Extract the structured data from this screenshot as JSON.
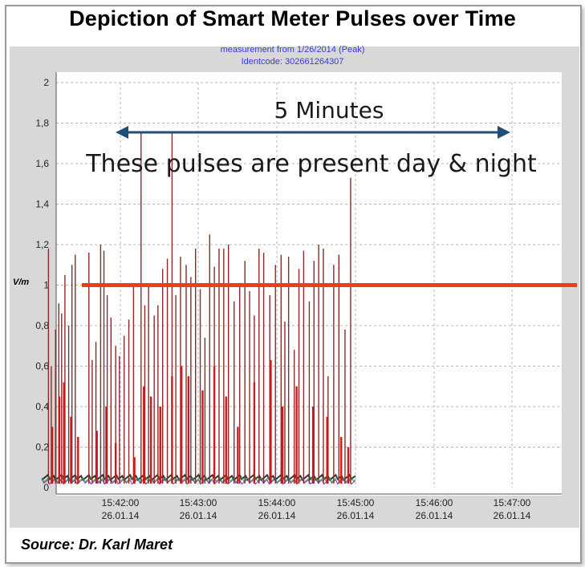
{
  "chart_data": {
    "type": "line",
    "title": "Depiction of Smart Meter Pulses over Time",
    "subtitle_lines": [
      "measurement from 1/26/2014 (Peak)",
      "Identcode: 302661264307"
    ],
    "ylabel": "V/m",
    "ylim": [
      0,
      2
    ],
    "y_ticks": [
      "0",
      "0,2",
      "0,4",
      "0,6",
      "0,8",
      "1",
      "1,2",
      "1,4",
      "1,6",
      "1,8",
      "2"
    ],
    "x_ticks": [
      {
        "time": "15:42:00",
        "date": "26.01.14"
      },
      {
        "time": "15:43:00",
        "date": "26.01.14"
      },
      {
        "time": "15:44:00",
        "date": "26.01.14"
      },
      {
        "time": "15:45:00",
        "date": "26.01.14"
      },
      {
        "time": "15:46:00",
        "date": "26.01.14"
      },
      {
        "time": "15:47:00",
        "date": "26.01.14"
      }
    ],
    "grid": true,
    "reference_line": {
      "value": 1,
      "color": "#e8401a"
    },
    "annotations": {
      "span_label": "5 Minutes",
      "note": "These pulses are present day & night"
    },
    "series": [
      {
        "color": "#8b2a2a",
        "pulses": [
          [
            15.6847,
            1.18
          ],
          [
            15.6853,
            0.6
          ],
          [
            15.6862,
            0.78
          ],
          [
            15.6869,
            0.91
          ],
          [
            15.6875,
            0.86
          ],
          [
            15.6882,
            1.05
          ],
          [
            15.689,
            0.8
          ],
          [
            15.6897,
            1.1
          ],
          [
            15.6904,
            1.15
          ],
          [
            15.6933,
            1.16
          ],
          [
            15.694,
            0.63
          ],
          [
            15.6948,
            0.72
          ],
          [
            15.6958,
            1.2
          ],
          [
            15.6965,
            1.17
          ],
          [
            15.6972,
            0.95
          ],
          [
            15.698,
            0.84
          ],
          [
            15.699,
            0.7
          ],
          [
            15.6998,
            0.65
          ],
          [
            15.7008,
            0.75
          ],
          [
            15.7018,
            0.83
          ],
          [
            15.7028,
            0.99
          ],
          [
            15.7044,
            1.76
          ],
          [
            15.7052,
            0.9
          ],
          [
            15.706,
            1.0
          ],
          [
            15.7072,
            0.85
          ],
          [
            15.708,
            0.9
          ],
          [
            15.709,
            1.08
          ],
          [
            15.71,
            1.13
          ],
          [
            15.711,
            1.75
          ],
          [
            15.7118,
            0.95
          ],
          [
            15.7128,
            1.14
          ],
          [
            15.714,
            1.1
          ],
          [
            15.715,
            1.04
          ],
          [
            15.716,
            1.18
          ],
          [
            15.717,
            0.98
          ],
          [
            15.718,
            0.74
          ],
          [
            15.719,
            1.25
          ],
          [
            15.72,
            1.09
          ],
          [
            15.721,
            1.18
          ],
          [
            15.722,
            1.18
          ],
          [
            15.723,
            1.2
          ],
          [
            15.7242,
            0.92
          ],
          [
            15.7254,
            1.0
          ],
          [
            15.7265,
            1.12
          ],
          [
            15.7275,
            0.97
          ],
          [
            15.7285,
            0.85
          ],
          [
            15.7295,
            1.18
          ],
          [
            15.7305,
            1.16
          ],
          [
            15.7318,
            0.95
          ],
          [
            15.733,
            1.1
          ],
          [
            15.7342,
            1.15
          ],
          [
            15.735,
            0.82
          ],
          [
            15.7358,
            1.14
          ],
          [
            15.737,
            0.68
          ],
          [
            15.738,
            1.08
          ],
          [
            15.739,
            1.17
          ],
          [
            15.7402,
            0.92
          ],
          [
            15.7412,
            1.12
          ],
          [
            15.7422,
            1.2
          ],
          [
            15.7432,
            1.18
          ],
          [
            15.7442,
            0.55
          ],
          [
            15.7454,
            1.1
          ],
          [
            15.7465,
            1.15
          ],
          [
            15.7478,
            0.78
          ],
          [
            15.749,
            1.53
          ]
        ]
      },
      {
        "color": "#d01818",
        "pulses": [
          [
            15.6855,
            0.3
          ],
          [
            15.687,
            0.45
          ],
          [
            15.688,
            0.52
          ],
          [
            15.6895,
            0.35
          ],
          [
            15.691,
            0.25
          ],
          [
            15.695,
            0.28
          ],
          [
            15.697,
            0.4
          ],
          [
            15.699,
            0.22
          ],
          [
            15.703,
            0.15
          ],
          [
            15.705,
            0.5
          ],
          [
            15.7065,
            0.45
          ],
          [
            15.7085,
            0.4
          ],
          [
            15.711,
            0.55
          ],
          [
            15.713,
            0.6
          ],
          [
            15.7145,
            0.55
          ],
          [
            15.7175,
            0.48
          ],
          [
            15.72,
            0.6
          ],
          [
            15.7225,
            0.45
          ],
          [
            15.725,
            0.3
          ],
          [
            15.7285,
            0.52
          ],
          [
            15.732,
            0.63
          ],
          [
            15.7345,
            0.4
          ],
          [
            15.7375,
            0.5
          ],
          [
            15.741,
            0.4
          ],
          [
            15.744,
            0.35
          ],
          [
            15.747,
            0.25
          ],
          [
            15.7485,
            0.2
          ]
        ]
      }
    ],
    "baseline_series": [
      {
        "color": "#111111",
        "value": 0.05
      },
      {
        "color": "#7a2fb8",
        "value": 0.03
      },
      {
        "color": "#2aa84a",
        "value": 0.04
      }
    ],
    "source": "Source:  Dr. Karl Maret"
  }
}
